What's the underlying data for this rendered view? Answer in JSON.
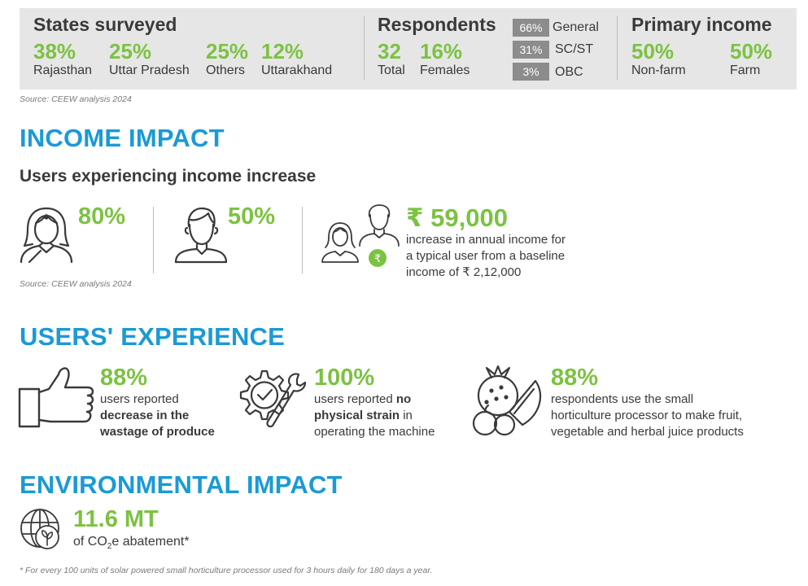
{
  "colors": {
    "accent_green": "#7cc242",
    "heading_blue": "#1a9ad6",
    "panel_gray": "#e6e6e6",
    "text_dark": "#3a3a3a"
  },
  "states": {
    "title": "States surveyed",
    "items": [
      {
        "value": "38%",
        "label": "Rajasthan"
      },
      {
        "value": "25%",
        "label": "Uttar Pradesh"
      },
      {
        "value": "25%",
        "label": "Others"
      },
      {
        "value": "12%",
        "label": "Uttarakhand"
      }
    ]
  },
  "respondents": {
    "title": "Respondents",
    "total": {
      "value": "32",
      "label": "Total"
    },
    "females": {
      "value": "16%",
      "label": "Females"
    },
    "categories": [
      {
        "value": "66%",
        "label": "General"
      },
      {
        "value": "31%",
        "label": "SC/ST"
      },
      {
        "value": "3%",
        "label": "OBC"
      }
    ]
  },
  "primary_income": {
    "title": "Primary income",
    "items": [
      {
        "value": "50%",
        "label": "Non-farm"
      },
      {
        "value": "50%",
        "label": "Farm"
      }
    ]
  },
  "source_1": "Source: CEEW analysis 2024",
  "income_impact": {
    "heading": "INCOME IMPACT",
    "subheading": "Users experiencing income increase",
    "female_value": "80%",
    "male_value": "50%",
    "amount": "₹ 59,000",
    "amount_desc_1": "increase in annual income for",
    "amount_desc_2": "a typical user from a baseline",
    "amount_desc_3": "income of ₹ 2,12,000",
    "rupee_symbol": "₹",
    "source": "Source: CEEW analysis 2024"
  },
  "users_experience": {
    "heading": "USERS' EXPERIENCE",
    "items": [
      {
        "value": "88%",
        "line1": "users reported",
        "line2": "decrease in the",
        "line3": "wastage of produce",
        "icon": "thumbs-up-icon"
      },
      {
        "value": "100%",
        "line1_a": "users reported ",
        "line1_b": "no",
        "line2_a": "physical strain",
        "line2_b": " in",
        "line3": "operating the machine",
        "icon": "gear-wrench-icon"
      },
      {
        "value": "88%",
        "line1": "respondents use the small",
        "line2": "horticulture processor to make fruit,",
        "line3": "vegetable and herbal juice products",
        "icon": "fruits-icon"
      }
    ]
  },
  "environmental": {
    "heading": "ENVIRONMENTAL IMPACT",
    "value": "11.6 MT",
    "desc_pre": "of CO",
    "desc_sub": "2",
    "desc_post": "e abatement*",
    "footnote": "* For every 100 units of solar powered small horticulture processor used for 3 hours daily for 180 days a year."
  }
}
